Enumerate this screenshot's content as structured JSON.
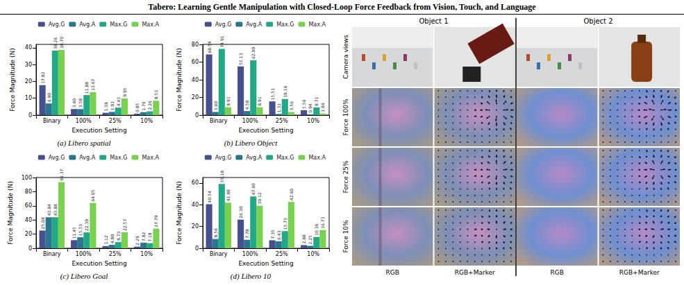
{
  "header": {
    "title": "Tabero: Learning Gentle Manipulation with Closed-Loop Force Feedback from Vision, Touch, and Language"
  },
  "chart_data": [
    {
      "type": "bar",
      "title": "(a) Libero spatial",
      "x_label": "Execution Setting",
      "y_label": "Force Magnitude (N)",
      "categories": [
        "Binary",
        "100%",
        "25%",
        "10%"
      ],
      "series": [
        {
          "name": "Avg.G",
          "color": "#46508f",
          "values": [
            17.82,
            3.6,
            1.38,
            0.85
          ],
          "value_labels": [
            "17.82",
            "3.60",
            "1.38",
            "0.85"
          ]
        },
        {
          "name": "Avg.A",
          "color": "#2a768e",
          "values": [
            6.9,
            3.58,
            1.91,
            1.76
          ],
          "value_labels": [
            "6.90",
            "3.58",
            "1.91",
            "1.76"
          ]
        },
        {
          "name": "Max.G",
          "color": "#22a884",
          "values": [
            38.26,
            11.88,
            4.43,
            2.26
          ],
          "value_labels": [
            "38.26",
            "11.88",
            "4.43",
            "2.26"
          ]
        },
        {
          "name": "Max.A",
          "color": "#7ad151",
          "values": [
            38.7,
            13.67,
            9.95,
            8.53
          ],
          "value_labels": [
            "38.70",
            "13.67",
            "9.95",
            "8.53"
          ]
        }
      ],
      "ylim": [
        0,
        42
      ],
      "yticks": [
        0,
        10,
        20,
        30,
        40
      ],
      "grid": false,
      "legend": "top",
      "data_labels": true
    },
    {
      "type": "bar",
      "title": "(b) Libero Object",
      "x_label": "Execution Setting",
      "y_label": "Force Magnitude (N)",
      "categories": [
        "Binary",
        "100%",
        "25%",
        "10%"
      ],
      "series": [
        {
          "name": "Avg.G",
          "color": "#46508f",
          "values": [
            68.59,
            55.13,
            15.51,
            5.56
          ],
          "value_labels": [
            "68.59",
            "55.13",
            "15.51",
            "5.56"
          ]
        },
        {
          "name": "Avg.A",
          "color": "#2a768e",
          "values": [
            3.6,
            4.58,
            1.31,
            0.94
          ],
          "value_labels": [
            "3.60",
            "4.58",
            "1.31",
            "0.94"
          ]
        },
        {
          "name": "Max.G",
          "color": "#22a884",
          "values": [
            74.91,
            62.0,
            18.16,
            8.71
          ],
          "value_labels": [
            "74.91",
            "62.00",
            "18.16",
            "8.71"
          ]
        },
        {
          "name": "Max.A",
          "color": "#7ad151",
          "values": [
            8.91,
            8.91,
            3.56,
            1.86
          ],
          "value_labels": [
            "8.91",
            "8.91",
            "3.56",
            "1.86"
          ]
        }
      ],
      "ylim": [
        0,
        80
      ],
      "yticks": [
        0,
        20,
        40,
        60,
        80
      ],
      "grid": false,
      "legend": "top",
      "data_labels": true
    },
    {
      "type": "bar",
      "title": "(c) Libero Goal",
      "x_label": "Execution Setting",
      "y_label": "Force Magnitude (N)",
      "categories": [
        "Binary",
        "100%",
        "25%",
        "10%"
      ],
      "series": [
        {
          "name": "Avg.G",
          "color": "#46508f",
          "values": [
            25.08,
            11.45,
            3.12,
            2.29
          ],
          "value_labels": [
            "25.08",
            "11.45",
            "3.12",
            "2.29"
          ]
        },
        {
          "name": "Avg.A",
          "color": "#2a768e",
          "values": [
            43.84,
            15.53,
            4.8,
            7.82
          ],
          "value_labels": [
            "43.84",
            "15.53",
            "4.80",
            "7.82"
          ]
        },
        {
          "name": "Max.G",
          "color": "#22a884",
          "values": [
            43.88,
            22.39,
            8.73,
            7.18
          ],
          "value_labels": [
            "43.88",
            "22.39",
            "8.73",
            "7.18"
          ]
        },
        {
          "name": "Max.A",
          "color": "#7ad151",
          "values": [
            93.37,
            64.05,
            22.57,
            27.79
          ],
          "value_labels": [
            "93.37",
            "64.05",
            "22.57",
            "27.79"
          ]
        }
      ],
      "ylim": [
        0,
        100
      ],
      "yticks": [
        0,
        20,
        40,
        60,
        80,
        100
      ],
      "grid": false,
      "legend": "top",
      "data_labels": true
    },
    {
      "type": "bar",
      "title": "(d) Libero 10",
      "x_label": "Execution Setting",
      "y_label": "Force Magnitude (N)",
      "categories": [
        "Binary",
        "100%",
        "25%",
        "10%"
      ],
      "series": [
        {
          "name": "Avg.G",
          "color": "#46508f",
          "values": [
            40.54,
            26.3,
            7.35,
            2.88
          ],
          "value_labels": [
            "40.54",
            "26.30",
            "7.35",
            "2.88"
          ]
        },
        {
          "name": "Avg.A",
          "color": "#2a768e",
          "values": [
            8.56,
            7.78,
            6.43,
            2.25
          ],
          "value_labels": [
            "8.56",
            "7.78",
            "6.43",
            "2.25"
          ]
        },
        {
          "name": "Max.G",
          "color": "#22a884",
          "values": [
            59.18,
            47.6,
            15.73,
            10.36
          ],
          "value_labels": [
            "59.18",
            "47.60",
            "15.73",
            "10.36"
          ]
        },
        {
          "name": "Max.A",
          "color": "#7ad151",
          "values": [
            41.88,
            39.12,
            42.6,
            16.73
          ],
          "value_labels": [
            "41.88",
            "39.12",
            "42.60",
            "16.73"
          ]
        }
      ],
      "ylim": [
        0,
        65
      ],
      "yticks": [
        0,
        20,
        40,
        60
      ],
      "grid": false,
      "legend": "top",
      "data_labels": true
    }
  ],
  "image_panel": {
    "columns": [
      "Object 1",
      "Object 2"
    ],
    "rows": [
      "Camera views",
      "Force 100%",
      "Force 25%",
      "Force 10%"
    ],
    "sub_columns": [
      "RGB",
      "RGB+Marker",
      "RGB",
      "RGB+Marker"
    ]
  }
}
